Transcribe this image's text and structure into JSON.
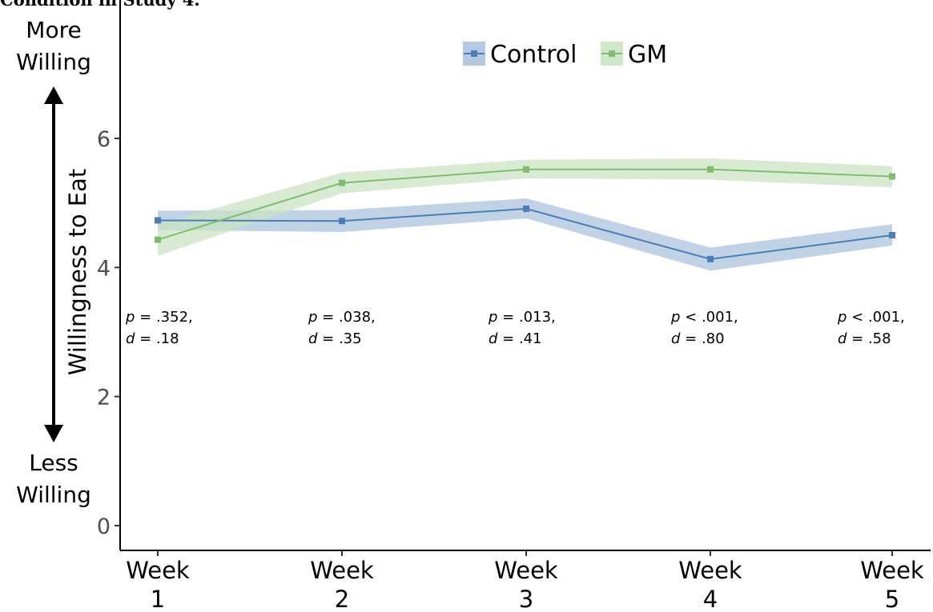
{
  "caption": "Condition in Study 4.",
  "chart_data": {
    "type": "line",
    "categories": [
      "Week 1",
      "Week 2",
      "Week 3",
      "Week 4",
      "Week 5"
    ],
    "x_tick_labels": [
      [
        "Week",
        "1"
      ],
      [
        "Week",
        "2"
      ],
      [
        "Week",
        "3"
      ],
      [
        "Week",
        "4"
      ],
      [
        "Week",
        "5"
      ]
    ],
    "ylabel": "Willingness to Eat",
    "ylim": [
      -0.3,
      7.8
    ],
    "yticks": [
      0,
      2,
      4,
      6
    ],
    "grid": false,
    "legend_placement": "top-center",
    "side_labels": {
      "top": [
        "More",
        "Willing"
      ],
      "bottom": [
        "Less",
        "Willing"
      ]
    },
    "series": [
      {
        "name": "Control",
        "color": "#4a7eb5",
        "band_color": "#a7bfdc",
        "values": [
          4.73,
          4.72,
          4.91,
          4.13,
          4.5
        ],
        "lower": [
          4.58,
          4.55,
          4.76,
          3.95,
          4.34
        ],
        "upper": [
          4.88,
          4.89,
          5.07,
          4.31,
          4.67
        ]
      },
      {
        "name": "GM",
        "color": "#80bc70",
        "band_color": "#c8e3bf",
        "values": [
          4.43,
          5.31,
          5.52,
          5.52,
          5.41
        ],
        "lower": [
          4.18,
          5.15,
          5.38,
          5.36,
          5.24
        ],
        "upper": [
          4.67,
          5.47,
          5.67,
          5.69,
          5.57
        ]
      }
    ],
    "annotations": [
      {
        "p": ".352",
        "p_op": "=",
        "d": ".18"
      },
      {
        "p": ".038",
        "p_op": "=",
        "d": ".35"
      },
      {
        "p": ".013",
        "p_op": "=",
        "d": ".41"
      },
      {
        "p": ".001",
        "p_op": "<",
        "d": ".80"
      },
      {
        "p": ".001",
        "p_op": "<",
        "d": ".58"
      }
    ]
  }
}
